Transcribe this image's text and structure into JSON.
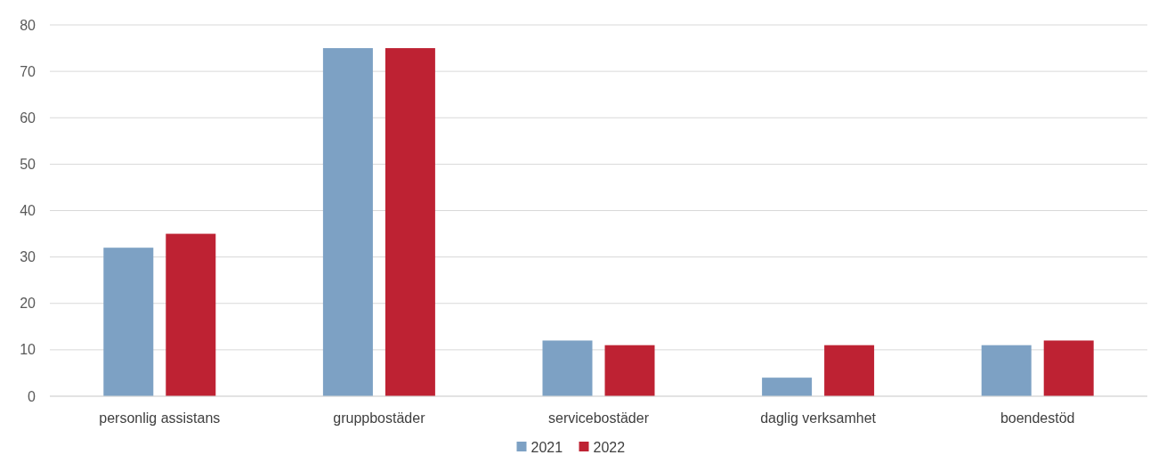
{
  "chart_data": {
    "type": "bar",
    "categories": [
      "personlig assistans",
      "gruppbostäder",
      "servicebostäder",
      "daglig verksamhet",
      "boendestöd"
    ],
    "series": [
      {
        "name": "2021",
        "color": "#7da1c4",
        "values": [
          32,
          75,
          12,
          4,
          11
        ]
      },
      {
        "name": "2022",
        "color": "#be2233",
        "values": [
          35,
          75,
          11,
          11,
          12
        ]
      }
    ],
    "ylim": [
      0,
      80
    ],
    "yticks": [
      0,
      10,
      20,
      30,
      40,
      50,
      60,
      70,
      80
    ],
    "grid": "y",
    "legend": "bottom"
  }
}
